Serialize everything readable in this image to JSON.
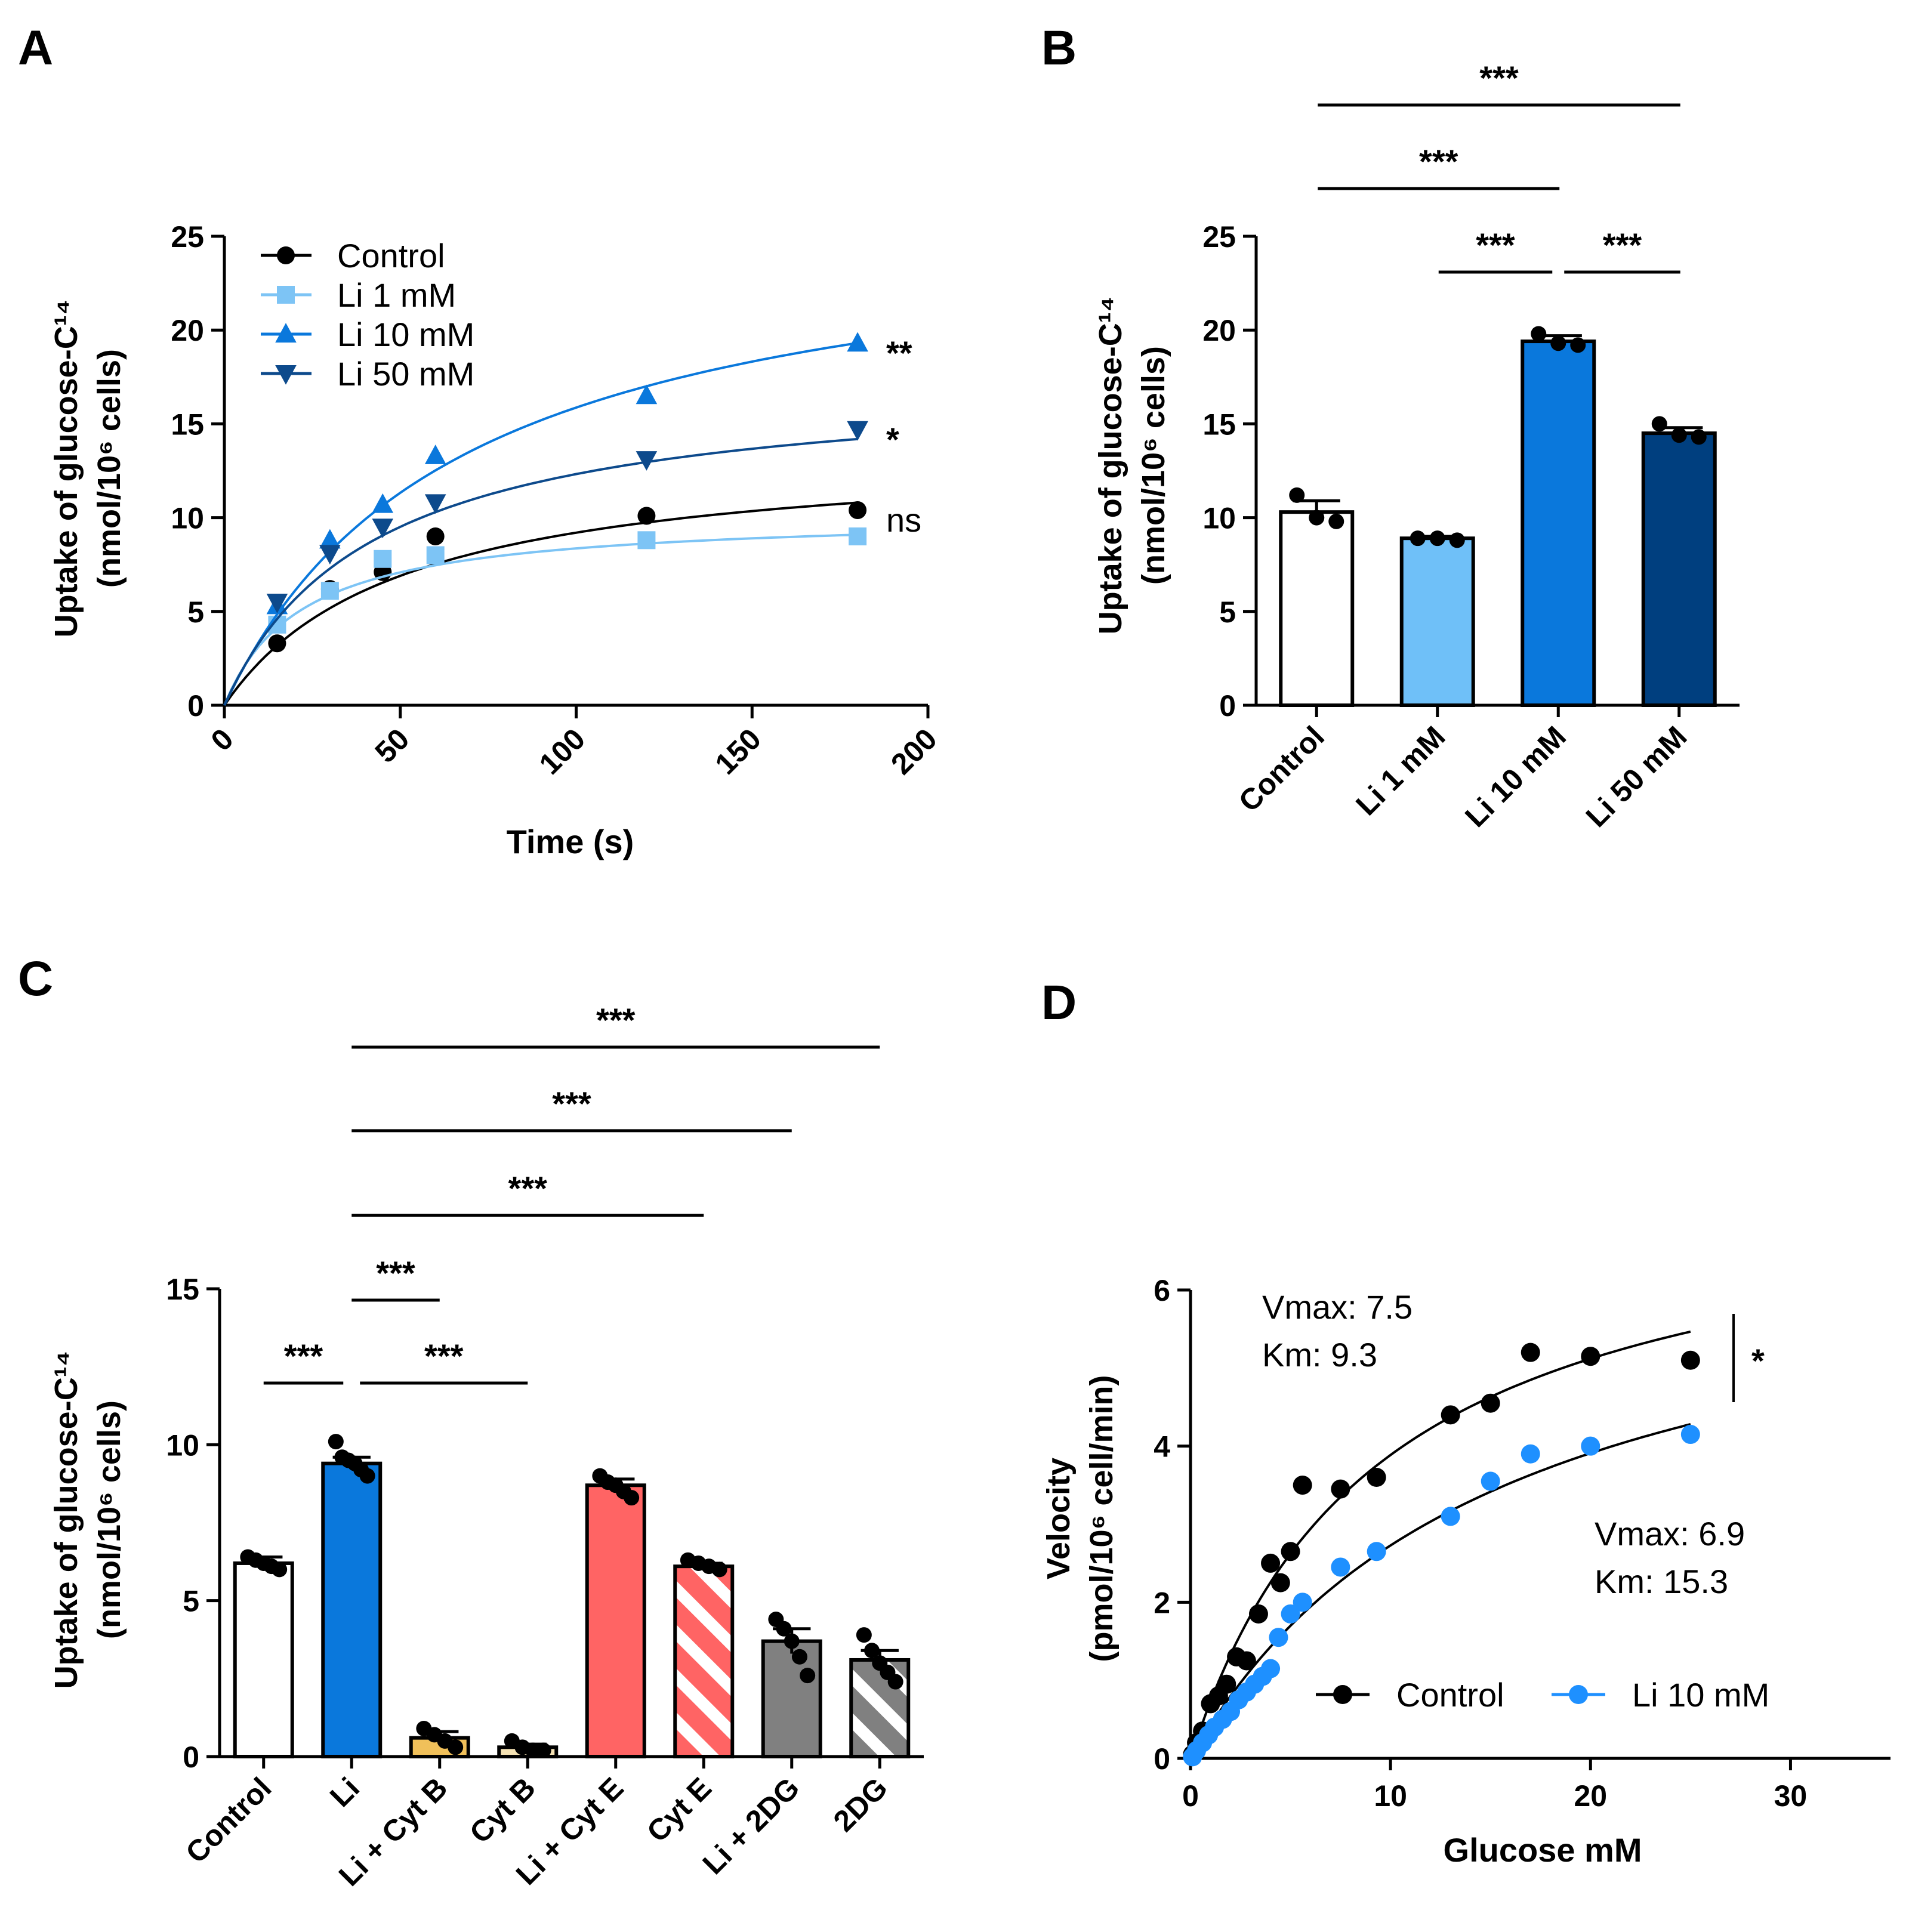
{
  "panels": {
    "A": {
      "label": "A"
    },
    "B": {
      "label": "B"
    },
    "C": {
      "label": "C"
    },
    "D": {
      "label": "D"
    }
  },
  "chart_data": [
    {
      "panel": "A",
      "type": "line",
      "xlabel": "Time (s)",
      "ylabel_line1": "Uptake of glucose-C¹⁴",
      "ylabel_line2": "(nmol/10⁶ cells)",
      "xlim": [
        0,
        200
      ],
      "ylim": [
        0,
        25
      ],
      "xticks": [
        0,
        50,
        100,
        150,
        200
      ],
      "yticks": [
        0,
        5,
        10,
        15,
        20,
        25
      ],
      "legend_position": "top-left",
      "series": [
        {
          "name": "Control",
          "color": "#000000",
          "marker": "circle",
          "x": [
            15,
            30,
            45,
            60,
            120,
            180
          ],
          "y": [
            3.3,
            6.2,
            7.1,
            9.0,
            10.1,
            10.4
          ],
          "fit": {
            "vmax": 13.8,
            "k": 50
          },
          "significance": "ns"
        },
        {
          "name": "Li 1 mM",
          "color": "#7dc4f5",
          "marker": "square",
          "x": [
            15,
            30,
            45,
            60,
            120,
            180
          ],
          "y": [
            4.3,
            6.1,
            7.8,
            8.0,
            8.8,
            9.0
          ],
          "fit": {
            "vmax": 10.2,
            "k": 22
          },
          "significance": ""
        },
        {
          "name": "Li 10 mM",
          "color": "#0a78dc",
          "marker": "triangle-up",
          "x": [
            15,
            30,
            45,
            60,
            120,
            180
          ],
          "y": [
            5.3,
            8.8,
            10.7,
            13.3,
            16.5,
            19.3
          ],
          "fit": {
            "vmax": 26.5,
            "k": 67
          },
          "significance": "**"
        },
        {
          "name": "Li 50 mM",
          "color": "#0d4a8c",
          "marker": "triangle-down",
          "x": [
            15,
            30,
            45,
            60,
            120,
            180
          ],
          "y": [
            5.5,
            8.1,
            9.5,
            10.8,
            13.1,
            14.7
          ],
          "fit": {
            "vmax": 17.5,
            "k": 42
          },
          "significance": "*"
        }
      ]
    },
    {
      "panel": "B",
      "type": "bar",
      "ylabel_line1": "Uptake of glucose-C¹⁴",
      "ylabel_line2": "(nmol/10⁶ cells)",
      "ylim": [
        0,
        25
      ],
      "yticks": [
        0,
        5,
        10,
        15,
        20,
        25
      ],
      "categories": [
        "Control",
        "Li 1 mM",
        "Li 10 mM",
        "Li 50 mM"
      ],
      "values": [
        10.3,
        8.9,
        19.4,
        14.5
      ],
      "errors": [
        0.6,
        0.1,
        0.3,
        0.3
      ],
      "colors": [
        "#ffffff",
        "#6fc0f8",
        "#0a78dc",
        "#003f7f"
      ],
      "points": [
        [
          11.2,
          10.0,
          9.8
        ],
        [
          8.9,
          8.9,
          8.8
        ],
        [
          19.8,
          19.3,
          19.2
        ],
        [
          15.0,
          14.4,
          14.3
        ]
      ],
      "comparisons": [
        {
          "from": 0,
          "to": 3,
          "label": "***"
        },
        {
          "from": 0,
          "to": 2,
          "label": "***"
        },
        {
          "from": 1,
          "to": 2,
          "label": "***"
        },
        {
          "from": 2,
          "to": 3,
          "label": "***"
        }
      ]
    },
    {
      "panel": "C",
      "type": "bar",
      "ylabel_line1": "Uptake of glucose-C¹⁴",
      "ylabel_line2": "(nmol/10⁶ cells)",
      "ylim": [
        0,
        15
      ],
      "yticks": [
        0,
        5,
        10,
        15
      ],
      "categories": [
        "Control",
        "Li",
        "Li + Cyt B",
        "Cyt B",
        "Li + Cyt E",
        "Cyt E",
        "Li + 2DG",
        "2DG"
      ],
      "values": [
        6.2,
        9.4,
        0.6,
        0.3,
        8.7,
        6.1,
        3.7,
        3.1
      ],
      "errors": [
        0.2,
        0.2,
        0.2,
        0.1,
        0.2,
        0.1,
        0.4,
        0.3
      ],
      "colors": [
        "#ffffff",
        "#0a78dc",
        "#f0c05a",
        "#f5e2b4",
        "#ff6464",
        "#ff6464",
        "#808080",
        "#808080"
      ],
      "hatched": [
        false,
        false,
        false,
        false,
        false,
        true,
        false,
        true
      ],
      "points": [
        [
          6.4,
          6.3,
          6.2,
          6.1,
          6.0
        ],
        [
          10.1,
          9.6,
          9.5,
          9.4,
          9.2,
          9.0
        ],
        [
          0.9,
          0.7,
          0.5,
          0.3
        ],
        [
          0.5,
          0.3,
          0.2,
          0.2
        ],
        [
          9.0,
          8.8,
          8.7,
          8.5,
          8.3
        ],
        [
          6.3,
          6.2,
          6.1,
          6.0
        ],
        [
          4.4,
          4.1,
          3.7,
          3.2,
          2.6
        ],
        [
          3.9,
          3.4,
          3.0,
          2.7,
          2.4
        ]
      ],
      "comparisons": [
        {
          "from": 1,
          "to": 7,
          "label": "***"
        },
        {
          "from": 1,
          "to": 6,
          "label": "***"
        },
        {
          "from": 1,
          "to": 5,
          "label": "***"
        },
        {
          "from": 1,
          "to": 2,
          "label": "***"
        },
        {
          "from": 0,
          "to": 1,
          "label": "***"
        },
        {
          "from": 1,
          "to": 3,
          "label": "***"
        }
      ]
    },
    {
      "panel": "D",
      "type": "scatter",
      "xlabel": "Glucose mM",
      "ylabel_line1": "Velocity",
      "ylabel_line2": "(pmol/10⁶ cell/min)",
      "xlim": [
        0,
        35
      ],
      "ylim": [
        0,
        6
      ],
      "xticks": [
        0,
        10,
        20,
        30
      ],
      "yticks": [
        0,
        2,
        4,
        6
      ],
      "legend_position": "bottom-right",
      "significance": "*",
      "series": [
        {
          "name": "Control",
          "color": "#000000",
          "x": [
            0.1,
            0.3,
            0.6,
            1.0,
            1.4,
            1.8,
            2.3,
            2.8,
            3.4,
            4.0,
            4.5,
            5.0,
            5.6,
            7.5,
            9.3,
            13.0,
            15.0,
            17.0,
            20.0,
            25.0
          ],
          "y": [
            0.05,
            0.2,
            0.35,
            0.7,
            0.8,
            0.95,
            1.3,
            1.25,
            1.85,
            2.5,
            2.25,
            2.65,
            3.5,
            3.45,
            3.6,
            4.4,
            4.55,
            5.2,
            5.15,
            5.1
          ],
          "fit": {
            "vmax": 7.5,
            "km": 9.3
          },
          "annotation_line1": "Vmax: 7.5",
          "annotation_line2": "Km: 9.3"
        },
        {
          "name": "Li 10 mM",
          "color": "#1e90ff",
          "x": [
            0.1,
            0.3,
            0.6,
            0.9,
            1.2,
            1.6,
            2.0,
            2.4,
            2.8,
            3.2,
            3.6,
            4.0,
            4.4,
            5.0,
            5.6,
            7.5,
            9.3,
            13.0,
            15.0,
            17.0,
            20.0,
            25.0
          ],
          "y": [
            0.02,
            0.1,
            0.2,
            0.3,
            0.4,
            0.5,
            0.6,
            0.75,
            0.85,
            0.95,
            1.05,
            1.15,
            1.55,
            1.85,
            2.0,
            2.45,
            2.65,
            3.1,
            3.55,
            3.9,
            4.0,
            4.15
          ],
          "fit": {
            "vmax": 6.9,
            "km": 15.3
          },
          "annotation_line1": "Vmax: 6.9",
          "annotation_line2": "Km: 15.3"
        }
      ]
    }
  ]
}
